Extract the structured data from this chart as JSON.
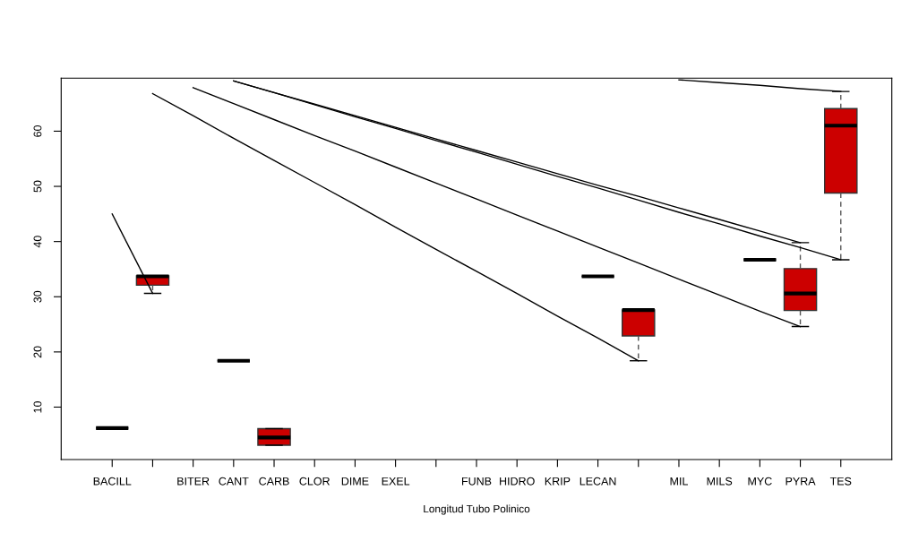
{
  "chart_data": {
    "type": "box",
    "xlabel": "Longitud Tubo Polinico",
    "categories": [
      "BACILL",
      null,
      "BITER",
      "CANT",
      "CARB",
      "CLOR",
      "DIME",
      "EXEL",
      null,
      "FUNB",
      "HIDRO",
      "KRIP",
      "LECAN",
      null,
      "MIL",
      "MILS",
      "MYC",
      "PYRA",
      "TES"
    ],
    "colors": [
      "#000000",
      "#cc0000",
      null,
      "#000000",
      "#cc0000",
      null,
      null,
      null,
      null,
      null,
      null,
      null,
      "#000000",
      "#cc0000",
      null,
      null,
      "#000000",
      "#cc0000",
      "#cc0000"
    ],
    "boxes": [
      {
        "low": 6.2,
        "q1": 6.2,
        "median": 6.2,
        "q3": 6.2,
        "high": 6.2
      },
      {
        "low": 30.6,
        "q1": 32.1,
        "median": 33.7,
        "q3": 33.8,
        "high": 33.8
      },
      null,
      {
        "low": 18.4,
        "q1": 18.4,
        "median": 18.4,
        "q3": 18.4,
        "high": 18.4
      },
      {
        "low": 3.1,
        "q1": 3.1,
        "median": 4.5,
        "q3": 6.1,
        "high": 6.1
      },
      null,
      null,
      null,
      null,
      null,
      null,
      null,
      {
        "low": 33.7,
        "q1": 33.7,
        "median": 33.7,
        "q3": 33.7,
        "high": 33.7
      },
      {
        "low": 18.4,
        "q1": 22.9,
        "median": 27.6,
        "q3": 27.6,
        "high": 27.6
      },
      null,
      null,
      {
        "low": 36.7,
        "q1": 36.7,
        "median": 36.7,
        "q3": 36.7,
        "high": 36.7
      },
      {
        "low": 24.6,
        "q1": 27.5,
        "median": 30.6,
        "q3": 35.1,
        "high": 39.8
      },
      {
        "low": 36.7,
        "q1": 48.8,
        "median": 61.0,
        "q3": 64.1,
        "high": 67.2
      }
    ],
    "series": [
      {
        "type": "line",
        "color": "#000000",
        "values": [
          45.0,
          30.6,
          null,
          null,
          null,
          null,
          null,
          null,
          null,
          null,
          null,
          null,
          null,
          null,
          null,
          null,
          null,
          null,
          null
        ]
      },
      {
        "type": "line",
        "color": "#000000",
        "values": [
          null,
          66.8,
          62.8,
          58.7,
          54.7,
          50.7,
          46.7,
          42.6,
          38.6,
          34.6,
          30.6,
          26.5,
          22.5,
          18.4,
          null,
          null,
          null,
          null,
          null
        ]
      },
      {
        "type": "line",
        "color": "#000000",
        "values": [
          null,
          null,
          67.9,
          65.0,
          62.1,
          59.2,
          56.4,
          53.5,
          50.6,
          47.7,
          44.8,
          41.9,
          39.0,
          36.1,
          33.2,
          30.3,
          27.4,
          24.6,
          null
        ]
      },
      {
        "type": "line",
        "color": "#000000",
        "values": [
          null,
          null,
          null,
          69.1,
          67.0,
          64.9,
          62.8,
          60.7,
          58.6,
          56.5,
          54.4,
          52.3,
          50.2,
          48.2,
          46.1,
          44.0,
          41.9,
          39.8,
          null
        ]
      },
      {
        "type": "line",
        "color": "#000000",
        "values": [
          null,
          null,
          null,
          69.1,
          67.0,
          64.8,
          62.6,
          60.5,
          58.3,
          56.2,
          54.0,
          51.8,
          49.7,
          47.5,
          45.3,
          43.2,
          41.0,
          38.9,
          36.7
        ]
      },
      {
        "type": "line",
        "color": "#000000",
        "values": [
          null,
          null,
          null,
          null,
          null,
          null,
          null,
          null,
          null,
          null,
          null,
          null,
          null,
          null,
          69.3,
          68.8,
          68.3,
          67.7,
          67.2
        ]
      }
    ],
    "ylim": [
      0.5,
      69.6
    ],
    "yticks": [
      10,
      20,
      30,
      40,
      50,
      60
    ],
    "grid": false,
    "legend": false
  }
}
